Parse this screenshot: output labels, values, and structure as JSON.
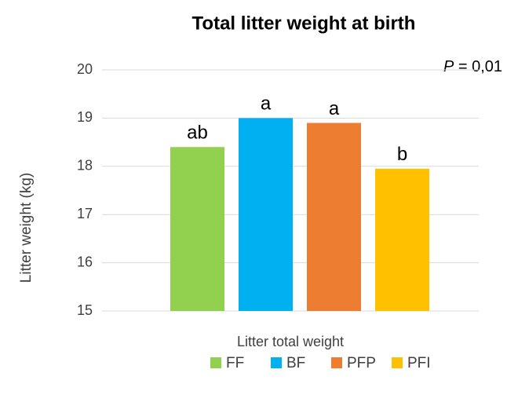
{
  "chart_data": {
    "type": "bar",
    "title": "Total litter weight at birth",
    "x_label": "Litter total weight",
    "y_label": "Litter weight (kg)",
    "categories": [
      "Litter total weight"
    ],
    "series": [
      {
        "name": "FF",
        "color": "#92d050",
        "values": [
          18.4
        ]
      },
      {
        "name": "BF",
        "color": "#00b0f0",
        "values": [
          19.0
        ]
      },
      {
        "name": "PFP",
        "color": "#ed7d31",
        "values": [
          18.9
        ]
      },
      {
        "name": "PFI",
        "color": "#ffc000",
        "values": [
          17.95
        ]
      }
    ],
    "group_letters": [
      "ab",
      "a",
      "a",
      "b"
    ],
    "p_annotation": {
      "symbol": "P",
      "text": " = 0,01"
    },
    "ylim": [
      15,
      20
    ],
    "yticks": [
      15,
      16,
      17,
      18,
      19,
      20
    ],
    "grid": true,
    "legend": "bottom"
  }
}
